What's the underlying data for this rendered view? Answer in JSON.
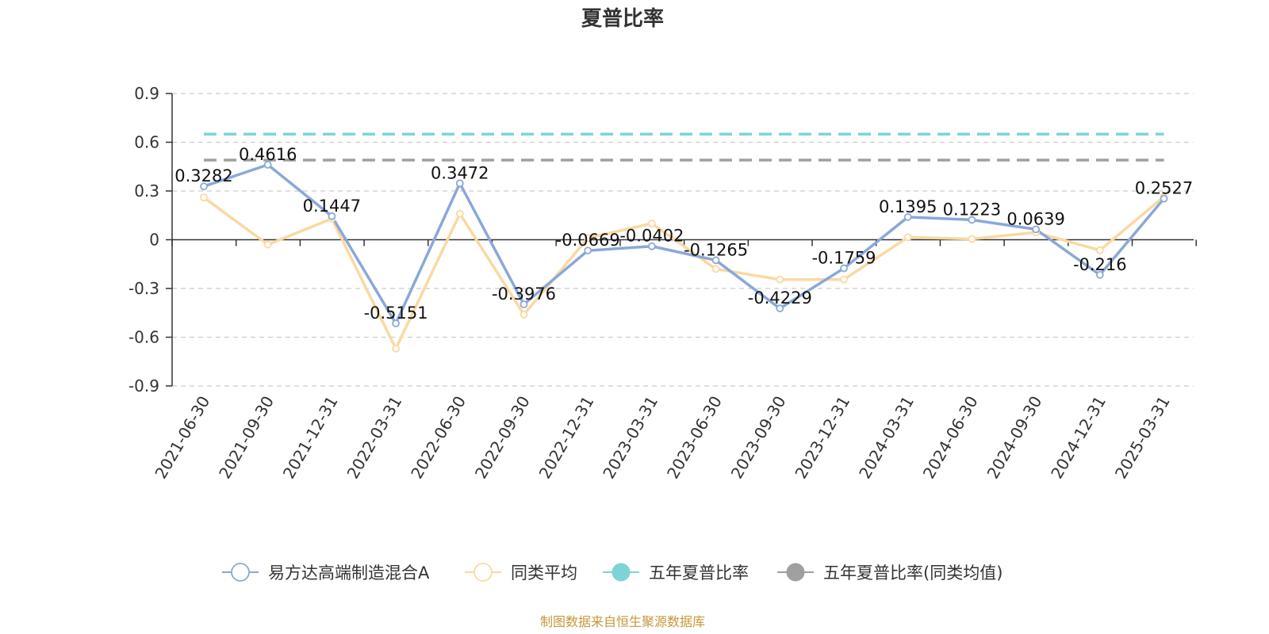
{
  "chart_data": {
    "type": "line",
    "title": "夏普比率",
    "categories": [
      "2021-06-30",
      "2021-09-30",
      "2021-12-31",
      "2022-03-31",
      "2022-06-30",
      "2022-09-30",
      "2022-12-31",
      "2023-03-31",
      "2023-06-30",
      "2023-09-30",
      "2023-12-31",
      "2024-03-31",
      "2024-06-30",
      "2024-09-30",
      "2024-12-31",
      "2025-03-31"
    ],
    "y_ticks": [
      "0.9",
      "0.6",
      "0.3",
      "0",
      "-0.3",
      "-0.6",
      "-0.9"
    ],
    "ylim": [
      -0.9,
      0.9
    ],
    "grid": true,
    "legend_position": "bottom",
    "series": [
      {
        "name": "易方达高端制造混合A",
        "color": "#8aa8d8",
        "marker": "hollow-circle",
        "values": [
          0.3282,
          0.4616,
          0.1447,
          -0.5151,
          0.3472,
          -0.3976,
          -0.0669,
          -0.0402,
          -0.1265,
          -0.4229,
          -0.1759,
          0.1395,
          0.1223,
          0.0639,
          -0.216,
          0.2527
        ],
        "labels": [
          "0.3282",
          "0.4616",
          "0.1447",
          "-0.5151",
          "0.3472",
          "-0.3976",
          "-0.0669",
          "-0.0402",
          "-0.1265",
          "-0.4229",
          "-0.1759",
          "0.1395",
          "0.1223",
          "0.0639",
          "-0.216",
          "0.2527"
        ]
      },
      {
        "name": "同类平均",
        "color": "#fad9a0",
        "marker": "hollow-circle",
        "values": [
          0.26,
          -0.03,
          0.13,
          -0.67,
          0.16,
          -0.46,
          0.01,
          0.1,
          -0.18,
          -0.245,
          -0.245,
          0.015,
          0.005,
          0.045,
          -0.065,
          0.265
        ]
      },
      {
        "name": "五年夏普比率",
        "color": "#7fd3d6",
        "marker": "filled-circle",
        "dashed": true,
        "value": 0.65
      },
      {
        "name": "五年夏普比率(同类均值)",
        "color": "#a0a0a0",
        "marker": "filled-circle",
        "dashed": true,
        "value": 0.49
      }
    ]
  },
  "source_text": "制图数据来自恒生聚源数据库"
}
